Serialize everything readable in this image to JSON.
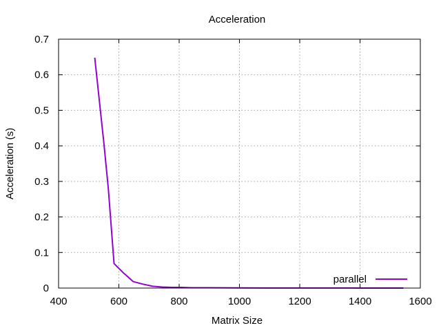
{
  "chart_data": {
    "type": "line",
    "title": "Acceleration",
    "xlabel": "Matrix Size",
    "ylabel": "Acceleration (s)",
    "xlim": [
      400,
      1600
    ],
    "ylim": [
      0,
      0.7
    ],
    "xticks": [
      400,
      600,
      800,
      1000,
      1200,
      1400,
      1600
    ],
    "xtick_labels": [
      "400",
      "600",
      "800",
      "1000",
      "1200",
      "1400",
      "1600"
    ],
    "yticks": [
      0,
      0.1,
      0.2,
      0.3,
      0.4,
      0.5,
      0.6,
      0.7
    ],
    "ytick_labels": [
      "0",
      "0.1",
      "0.2",
      "0.3",
      "0.4",
      "0.5",
      "0.6",
      "0.7"
    ],
    "grid": true,
    "legend_position": "bottom-right",
    "series": [
      {
        "name": "parallel",
        "color": "#9400d3",
        "x": [
          520,
          550,
          565,
          584,
          616,
          648,
          680,
          712,
          744,
          776,
          808,
          840,
          900,
          1000,
          1100,
          1200,
          1300,
          1400,
          1500,
          1544
        ],
        "y": [
          0.648,
          0.41,
          0.28,
          0.069,
          0.042,
          0.018,
          0.011,
          0.005,
          0.003,
          0.002,
          0.002,
          0.001,
          0.001,
          0.0005,
          0.0003,
          0.0002,
          0.0002,
          0.0001,
          0.0001,
          0.0001
        ]
      }
    ]
  }
}
